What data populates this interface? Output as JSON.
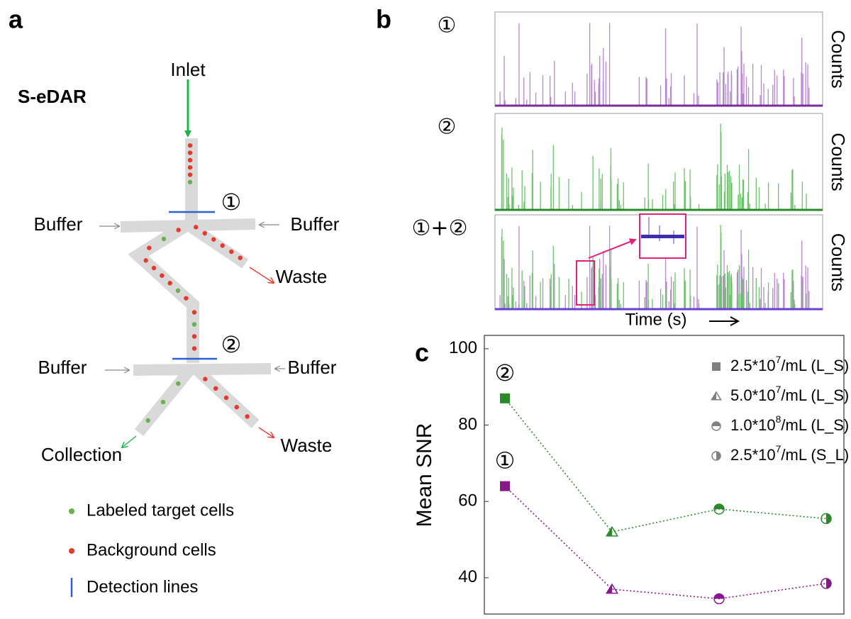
{
  "panel_a": {
    "label": "a",
    "title": "S-eDAR",
    "inlet": "Inlet",
    "buffer_labels": [
      "Buffer",
      "Buffer",
      "Buffer",
      "Buffer"
    ],
    "waste_labels": [
      "Waste",
      "Waste"
    ],
    "collection": "Collection",
    "detection_points": [
      "①",
      "②"
    ],
    "legend": [
      "Labeled target cells",
      "Background cells",
      "Detection lines"
    ]
  },
  "panel_b": {
    "label": "b",
    "traces": [
      {
        "label": "①",
        "ylabel": "Counts"
      },
      {
        "label": "②",
        "ylabel": "Counts"
      },
      {
        "label": "①+②",
        "ylabel": "Counts"
      }
    ],
    "xlabel": "Time (s)"
  },
  "chart_data": {
    "type": "line",
    "panel_label": "c",
    "ylabel": "Mean SNR",
    "categories": [
      null,
      null,
      null,
      null
    ],
    "series": [
      {
        "name": "②",
        "color": "#2a8a2a",
        "values": [
          87,
          52,
          58,
          55.5
        ]
      },
      {
        "name": "①",
        "color": "#86198a",
        "values": [
          64,
          37,
          34.5,
          38.5
        ]
      }
    ],
    "ylim": [
      30.5,
      103.5
    ],
    "yticks": [
      40,
      60,
      80,
      100
    ],
    "legend": [
      {
        "base": "2.5*10",
        "exp": "7",
        "unit": "/mL (L_S)",
        "marker": "square"
      },
      {
        "base": "5.0*10",
        "exp": "7",
        "unit": "/mL (L_S)",
        "marker": "triangle"
      },
      {
        "base": "1.0*10",
        "exp": "8",
        "unit": "/mL (L_S)",
        "marker": "circle-top"
      },
      {
        "base": "2.5*10",
        "exp": "7",
        "unit": "/mL (S_L)",
        "marker": "circle-right"
      }
    ],
    "marker_color": "#808080"
  }
}
